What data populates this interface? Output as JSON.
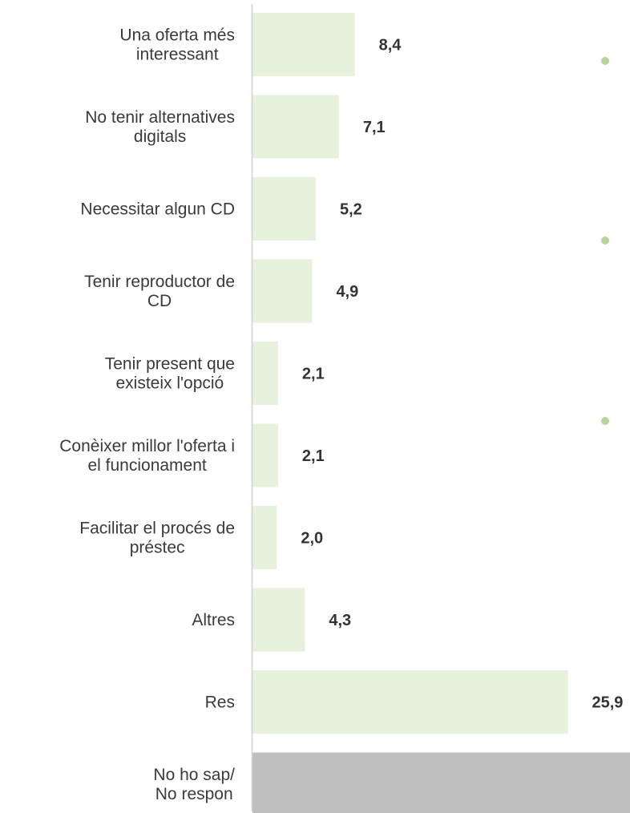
{
  "chart_data": {
    "type": "bar",
    "orientation": "horizontal",
    "categories": [
      [
        "Una oferta més",
        "interessant"
      ],
      [
        "No tenir alternatives",
        "digitals"
      ],
      [
        "Necessitar algun CD"
      ],
      [
        "Tenir reproductor de",
        "CD"
      ],
      [
        "Tenir present que",
        "existeix l'opció"
      ],
      [
        "Conèixer millor l'oferta i",
        "el funcionament"
      ],
      [
        "Facilitar el procés de",
        "préstec"
      ],
      [
        "Altres"
      ],
      [
        "Res"
      ],
      [
        "No ho sap/",
        "No respon"
      ]
    ],
    "values": [
      8.4,
      7.1,
      5.2,
      4.9,
      2.1,
      2.1,
      2.0,
      4.3,
      25.9,
      31.0
    ],
    "value_labels": [
      "8,4",
      "7,1",
      "5,2",
      "4,9",
      "2,1",
      "2,1",
      "2,0",
      "4,3",
      "25,9",
      ""
    ],
    "bar_colors": [
      "#e6f2dc",
      "#e6f2dc",
      "#e6f2dc",
      "#e6f2dc",
      "#e6f2dc",
      "#e6f2dc",
      "#e6f2dc",
      "#e6f2dc",
      "#e6f2dc",
      "#bfbfbf"
    ],
    "xlim": [
      0,
      31.0
    ],
    "grid": false,
    "title": "",
    "xlabel": "",
    "ylabel": "",
    "marker_color": "#b8d49a"
  }
}
